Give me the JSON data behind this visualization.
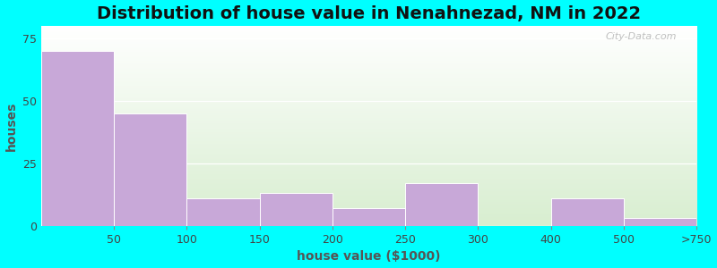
{
  "title": "Distribution of house value in Nenahnezad, NM in 2022",
  "xlabel": "house value ($1000)",
  "ylabel": "houses",
  "tick_labels": [
    "50",
    "100",
    "150",
    "200",
    "250",
    "300",
    "400",
    "500",
    ">750"
  ],
  "bar_values": [
    70,
    45,
    11,
    13,
    7,
    17,
    0,
    11,
    3
  ],
  "bar_color": "#C8A8D8",
  "bar_edge_color": "#FFFFFF",
  "ylim": [
    0,
    80
  ],
  "yticks": [
    0,
    25,
    50,
    75
  ],
  "background_outer": "#00FFFF",
  "background_inner_top": "#FFFFFF",
  "background_inner_bottom": "#D8EED0",
  "title_fontsize": 14,
  "label_fontsize": 10,
  "tick_fontsize": 9,
  "title_color": "#111111",
  "axis_label_color": "#555555",
  "watermark": "City-Data.com"
}
